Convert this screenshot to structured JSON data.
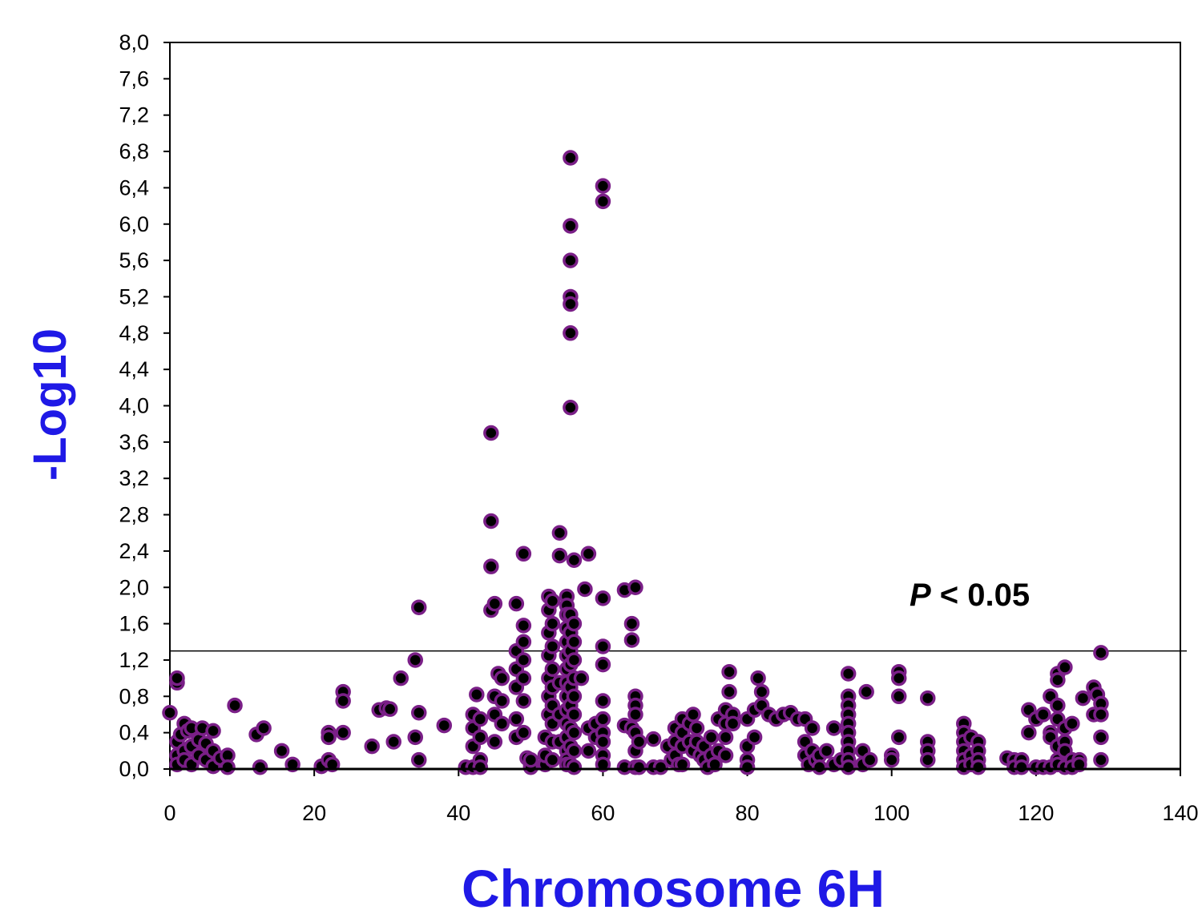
{
  "chart_data": {
    "type": "scatter",
    "title": "",
    "xlabel": "Chromosome 6H",
    "ylabel": "-Log10",
    "xlim": [
      0,
      140
    ],
    "ylim": [
      0,
      8
    ],
    "x_ticks": [
      0,
      20,
      40,
      60,
      80,
      100,
      120,
      140
    ],
    "x_tick_labels": [
      "0",
      "20",
      "40",
      "60",
      "80",
      "100",
      "120",
      "140"
    ],
    "y_ticks": [
      0,
      0.4,
      0.8,
      1.2,
      1.6,
      2.0,
      2.4,
      2.8,
      3.2,
      3.6,
      4.0,
      4.4,
      4.8,
      5.2,
      5.6,
      6.0,
      6.4,
      6.8,
      7.2,
      7.6,
      8.0
    ],
    "y_tick_labels": [
      "0,0",
      "0,4",
      "0,8",
      "1,2",
      "1,6",
      "2,0",
      "2,4",
      "2,8",
      "3,2",
      "3,6",
      "4,0",
      "4,4",
      "4,8",
      "5,2",
      "5,6",
      "6,0",
      "6,4",
      "6,8",
      "7,2",
      "7,6",
      "8,0"
    ],
    "grid": false,
    "legend": false,
    "colors": {
      "marker_fill": "#000000",
      "marker_edge": "#7a1f87",
      "axis_title": "#1f19e6",
      "threshold_line": "#000000"
    },
    "threshold": {
      "y": 1.3,
      "label_p": "P",
      "label_rest": " < 0.05"
    },
    "points": [
      [
        0,
        0.62
      ],
      [
        1,
        0.95
      ],
      [
        1,
        1.0
      ],
      [
        1,
        0.3
      ],
      [
        1,
        0.15
      ],
      [
        1,
        0.05
      ],
      [
        1.5,
        0.38
      ],
      [
        2,
        0.5
      ],
      [
        2,
        0.2
      ],
      [
        2,
        0.1
      ],
      [
        2.5,
        0.42
      ],
      [
        3,
        0.45
      ],
      [
        3,
        0.25
      ],
      [
        3,
        0.05
      ],
      [
        4,
        0.32
      ],
      [
        4,
        0.15
      ],
      [
        4.5,
        0.45
      ],
      [
        5,
        0.28
      ],
      [
        5,
        0.1
      ],
      [
        6,
        0.42
      ],
      [
        6,
        0.2
      ],
      [
        6,
        0.03
      ],
      [
        7,
        0.12
      ],
      [
        8,
        0.15
      ],
      [
        8,
        0.02
      ],
      [
        9,
        0.7
      ],
      [
        12,
        0.38
      ],
      [
        12.5,
        0.02
      ],
      [
        13,
        0.45
      ],
      [
        15.5,
        0.2
      ],
      [
        17,
        0.05
      ],
      [
        21,
        0.03
      ],
      [
        22,
        0.1
      ],
      [
        22,
        0.4
      ],
      [
        22.5,
        0.05
      ],
      [
        22,
        0.35
      ],
      [
        24,
        0.85
      ],
      [
        24,
        0.75
      ],
      [
        24,
        0.4
      ],
      [
        28,
        0.25
      ],
      [
        29,
        0.65
      ],
      [
        30,
        0.67
      ],
      [
        30.5,
        0.66
      ],
      [
        31,
        0.3
      ],
      [
        32,
        1.0
      ],
      [
        34,
        1.2
      ],
      [
        34,
        0.35
      ],
      [
        34.5,
        1.78
      ],
      [
        34.5,
        0.62
      ],
      [
        34.5,
        0.1
      ],
      [
        38,
        0.48
      ],
      [
        41,
        0.02
      ],
      [
        42,
        0.02
      ],
      [
        42,
        0.25
      ],
      [
        42,
        0.45
      ],
      [
        42,
        0.6
      ],
      [
        42.5,
        0.82
      ],
      [
        43,
        0.55
      ],
      [
        43,
        0.35
      ],
      [
        43,
        0.1
      ],
      [
        43,
        0.02
      ],
      [
        44.5,
        3.7
      ],
      [
        44.5,
        2.73
      ],
      [
        44.5,
        2.23
      ],
      [
        44.5,
        1.75
      ],
      [
        45,
        1.82
      ],
      [
        45,
        0.8
      ],
      [
        45,
        0.6
      ],
      [
        45,
        0.3
      ],
      [
        45.5,
        1.05
      ],
      [
        46,
        1.0
      ],
      [
        46,
        0.75
      ],
      [
        46,
        0.5
      ],
      [
        48,
        1.82
      ],
      [
        48,
        1.3
      ],
      [
        48,
        1.1
      ],
      [
        48,
        0.9
      ],
      [
        48,
        0.55
      ],
      [
        48,
        0.35
      ],
      [
        49,
        2.37
      ],
      [
        49,
        1.58
      ],
      [
        49,
        1.4
      ],
      [
        49,
        1.2
      ],
      [
        49,
        1.0
      ],
      [
        49,
        0.75
      ],
      [
        49,
        0.4
      ],
      [
        49.5,
        0.12
      ],
      [
        50,
        0.05
      ],
      [
        50,
        0.02
      ],
      [
        50,
        0.1
      ],
      [
        52,
        0.35
      ],
      [
        52,
        0.05
      ],
      [
        52,
        0.15
      ],
      [
        52.5,
        1.9
      ],
      [
        52.5,
        1.75
      ],
      [
        52.5,
        1.5
      ],
      [
        52.5,
        1.25
      ],
      [
        52.5,
        1.0
      ],
      [
        52.5,
        0.8
      ],
      [
        52.5,
        0.6
      ],
      [
        53,
        1.85
      ],
      [
        53,
        1.6
      ],
      [
        53,
        1.35
      ],
      [
        53,
        1.1
      ],
      [
        53,
        0.9
      ],
      [
        53,
        0.7
      ],
      [
        53,
        0.5
      ],
      [
        53,
        0.3
      ],
      [
        53,
        0.1
      ],
      [
        54,
        2.6
      ],
      [
        54,
        2.35
      ],
      [
        54,
        0.95
      ],
      [
        54,
        0.6
      ],
      [
        54,
        0.3
      ],
      [
        55,
        1.9
      ],
      [
        55,
        1.8
      ],
      [
        55,
        1.7
      ],
      [
        55,
        1.55
      ],
      [
        55,
        1.4
      ],
      [
        55,
        1.25
      ],
      [
        55,
        1.1
      ],
      [
        55,
        0.95
      ],
      [
        55,
        0.8
      ],
      [
        55,
        0.65
      ],
      [
        55,
        0.5
      ],
      [
        55,
        0.35
      ],
      [
        55,
        0.2
      ],
      [
        55,
        0.1
      ],
      [
        55,
        0.05
      ],
      [
        55.5,
        6.73
      ],
      [
        55.5,
        5.98
      ],
      [
        55.5,
        5.6
      ],
      [
        55.5,
        5.2
      ],
      [
        55.5,
        5.12
      ],
      [
        55.5,
        4.8
      ],
      [
        55.5,
        3.98
      ],
      [
        55.5,
        1.7
      ],
      [
        55.5,
        1.5
      ],
      [
        55.5,
        1.3
      ],
      [
        55.5,
        1.15
      ],
      [
        55.5,
        0.9
      ],
      [
        55.5,
        0.7
      ],
      [
        55.5,
        0.45
      ],
      [
        55.5,
        0.25
      ],
      [
        55.5,
        0.05
      ],
      [
        56,
        2.3
      ],
      [
        56,
        1.6
      ],
      [
        56,
        1.4
      ],
      [
        56,
        1.2
      ],
      [
        56,
        1.0
      ],
      [
        56,
        0.8
      ],
      [
        56,
        0.6
      ],
      [
        56,
        0.4
      ],
      [
        56,
        0.2
      ],
      [
        56,
        0.02
      ],
      [
        57,
        1.0
      ],
      [
        57.5,
        1.98
      ],
      [
        58,
        2.37
      ],
      [
        58,
        0.45
      ],
      [
        58,
        0.2
      ],
      [
        59,
        0.5
      ],
      [
        59,
        0.35
      ],
      [
        60,
        6.42
      ],
      [
        60,
        6.25
      ],
      [
        60,
        1.88
      ],
      [
        60,
        1.35
      ],
      [
        60,
        1.15
      ],
      [
        60,
        0.75
      ],
      [
        60,
        0.55
      ],
      [
        60,
        0.4
      ],
      [
        60,
        0.3
      ],
      [
        60,
        0.15
      ],
      [
        60,
        0.05
      ],
      [
        63,
        1.97
      ],
      [
        63,
        0.48
      ],
      [
        63,
        0.02
      ],
      [
        64,
        1.6
      ],
      [
        64,
        1.42
      ],
      [
        64,
        0.45
      ],
      [
        64.5,
        2.0
      ],
      [
        64.5,
        0.8
      ],
      [
        64.5,
        0.7
      ],
      [
        64.5,
        0.6
      ],
      [
        64.5,
        0.4
      ],
      [
        64.5,
        0.2
      ],
      [
        64.5,
        0.02
      ],
      [
        65,
        0.3
      ],
      [
        65,
        0.02
      ],
      [
        67,
        0.33
      ],
      [
        67,
        0.02
      ],
      [
        68,
        0.02
      ],
      [
        69,
        0.25
      ],
      [
        69.5,
        0.1
      ],
      [
        70,
        0.45
      ],
      [
        70,
        0.3
      ],
      [
        70,
        0.15
      ],
      [
        70.5,
        0.05
      ],
      [
        71,
        0.55
      ],
      [
        71,
        0.4
      ],
      [
        71,
        0.25
      ],
      [
        71,
        0.05
      ],
      [
        72,
        0.5
      ],
      [
        72,
        0.3
      ],
      [
        72.5,
        0.6
      ],
      [
        72.5,
        0.2
      ],
      [
        73,
        0.45
      ],
      [
        73,
        0.3
      ],
      [
        73.5,
        0.15
      ],
      [
        74,
        0.25
      ],
      [
        74,
        0.1
      ],
      [
        74.5,
        0.02
      ],
      [
        75,
        0.35
      ],
      [
        75,
        0.15
      ],
      [
        75.5,
        0.05
      ],
      [
        76,
        0.55
      ],
      [
        76,
        0.2
      ],
      [
        77,
        0.65
      ],
      [
        77,
        0.5
      ],
      [
        77,
        0.35
      ],
      [
        77,
        0.15
      ],
      [
        77.5,
        1.07
      ],
      [
        77.5,
        0.85
      ],
      [
        78,
        0.6
      ],
      [
        78,
        0.5
      ],
      [
        80,
        0.55
      ],
      [
        80,
        0.1
      ],
      [
        80,
        0.02
      ],
      [
        80,
        0.25
      ],
      [
        81,
        0.65
      ],
      [
        81,
        0.35
      ],
      [
        81.5,
        1.0
      ],
      [
        82,
        0.85
      ],
      [
        82,
        0.7
      ],
      [
        83,
        0.6
      ],
      [
        84,
        0.55
      ],
      [
        85,
        0.6
      ],
      [
        86,
        0.62
      ],
      [
        87,
        0.55
      ],
      [
        88,
        0.55
      ],
      [
        88,
        0.3
      ],
      [
        88,
        0.15
      ],
      [
        88.5,
        0.05
      ],
      [
        89,
        0.45
      ],
      [
        89,
        0.2
      ],
      [
        89.5,
        0.1
      ],
      [
        90,
        0.15
      ],
      [
        90,
        0.02
      ],
      [
        91,
        0.2
      ],
      [
        92,
        0.45
      ],
      [
        92,
        0.05
      ],
      [
        93,
        0.1
      ],
      [
        94,
        1.05
      ],
      [
        94,
        0.8
      ],
      [
        94,
        0.7
      ],
      [
        94,
        0.6
      ],
      [
        94,
        0.5
      ],
      [
        94,
        0.4
      ],
      [
        94,
        0.3
      ],
      [
        94,
        0.2
      ],
      [
        94,
        0.1
      ],
      [
        94,
        0.02
      ],
      [
        96,
        0.2
      ],
      [
        96,
        0.05
      ],
      [
        96.5,
        0.85
      ],
      [
        97,
        0.1
      ],
      [
        100,
        0.15
      ],
      [
        100,
        0.1
      ],
      [
        101,
        1.07
      ],
      [
        101,
        1.0
      ],
      [
        101,
        0.8
      ],
      [
        101,
        0.35
      ],
      [
        105,
        0.78
      ],
      [
        105,
        0.3
      ],
      [
        105,
        0.2
      ],
      [
        105,
        0.1
      ],
      [
        110,
        0.5
      ],
      [
        110,
        0.4
      ],
      [
        110,
        0.3
      ],
      [
        110,
        0.2
      ],
      [
        110,
        0.1
      ],
      [
        110,
        0.02
      ],
      [
        111,
        0.35
      ],
      [
        111,
        0.15
      ],
      [
        111,
        0.05
      ],
      [
        112,
        0.3
      ],
      [
        112,
        0.2
      ],
      [
        112,
        0.1
      ],
      [
        112,
        0.02
      ],
      [
        116,
        0.12
      ],
      [
        117,
        0.1
      ],
      [
        117,
        0.02
      ],
      [
        118,
        0.1
      ],
      [
        118,
        0.02
      ],
      [
        119,
        0.65
      ],
      [
        119,
        0.4
      ],
      [
        120,
        0.55
      ],
      [
        120,
        0.02
      ],
      [
        121,
        0.6
      ],
      [
        121,
        0.02
      ],
      [
        122,
        0.8
      ],
      [
        122,
        0.4
      ],
      [
        122,
        0.35
      ],
      [
        122,
        0.02
      ],
      [
        123,
        1.05
      ],
      [
        123,
        0.98
      ],
      [
        123,
        0.7
      ],
      [
        123,
        0.55
      ],
      [
        123,
        0.25
      ],
      [
        123,
        0.1
      ],
      [
        123,
        0.05
      ],
      [
        124,
        1.12
      ],
      [
        124,
        0.45
      ],
      [
        124,
        0.3
      ],
      [
        124,
        0.2
      ],
      [
        124,
        0.02
      ],
      [
        125,
        0.5
      ],
      [
        125,
        0.1
      ],
      [
        125,
        0.02
      ],
      [
        126,
        0.1
      ],
      [
        126,
        0.05
      ],
      [
        126.5,
        0.78
      ],
      [
        128,
        0.9
      ],
      [
        128,
        0.6
      ],
      [
        128.5,
        0.82
      ],
      [
        129,
        1.28
      ],
      [
        129,
        0.72
      ],
      [
        129,
        0.6
      ],
      [
        129,
        0.35
      ],
      [
        129,
        0.1
      ]
    ]
  }
}
